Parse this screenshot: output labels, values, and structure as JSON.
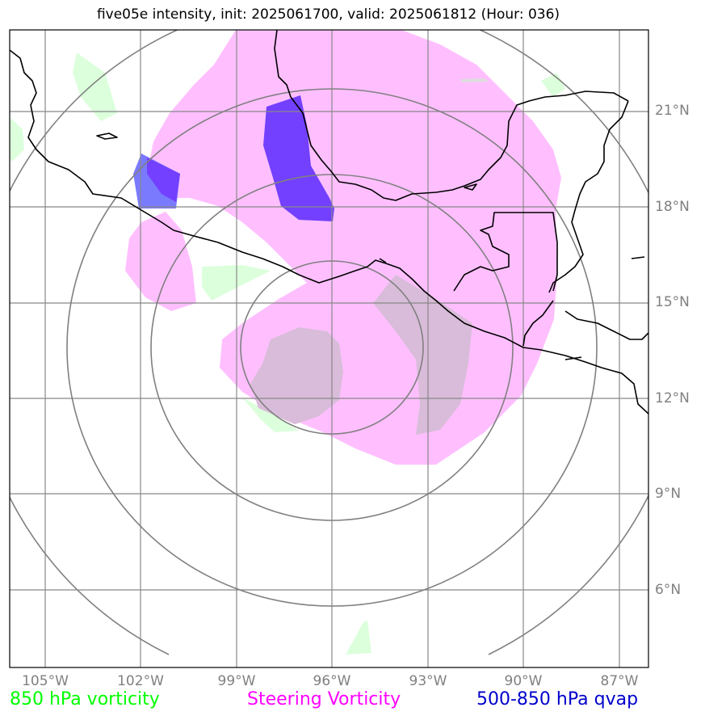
{
  "title": "five05e intensity, init: 2025061700, valid: 2025061812 (Hour: 036)",
  "lat_labels": [
    "21°N",
    "18°N",
    "15°N",
    "12°N",
    "9°N",
    "6°N"
  ],
  "lon_labels": [
    "105°W",
    "102°W",
    "99°W",
    "96°W",
    "93°W",
    "90°W",
    "87°W"
  ],
  "legend": [
    {
      "label": "850 hPa vorticity",
      "color": "#00ff00"
    },
    {
      "label": "Steering Vorticity",
      "color": "#ff00ff"
    },
    {
      "label": "500-850 hPa qvap",
      "color": "#0000cc"
    }
  ],
  "colors": {
    "steering": "#ffbfff",
    "vort850": "#dcffdc",
    "qvap": "#7340ff",
    "overlap": "#d9bcd9",
    "grid": "#888888",
    "coast": "#000000"
  }
}
